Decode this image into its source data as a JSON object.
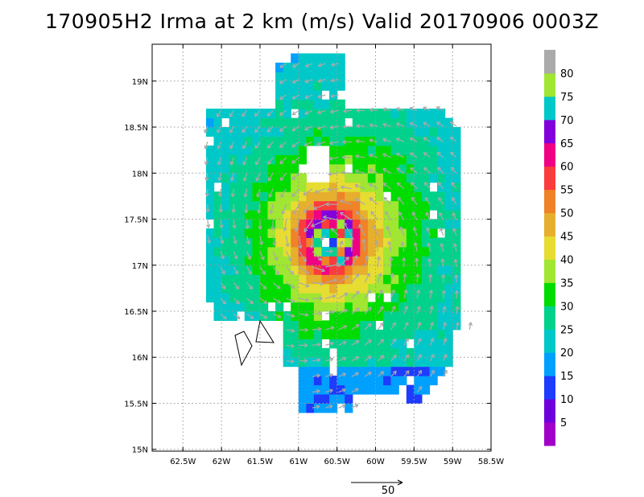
{
  "chart_data": {
    "type": "heatmap",
    "title": "170905H2 Irma at 2 km (m/s) Valid 20170906 0003Z",
    "x_ticks": [
      "62.5W",
      "62W",
      "61.5W",
      "61W",
      "60.5W",
      "60W",
      "59.5W",
      "59W",
      "58.5W"
    ],
    "x_tick_values": [
      -62.5,
      -62,
      -61.5,
      -61,
      -60.5,
      -60,
      -59.5,
      -59,
      -58.5
    ],
    "y_ticks": [
      "19N",
      "18.5N",
      "18N",
      "17.5N",
      "17N",
      "16.5N",
      "16N",
      "15.5N",
      "15N"
    ],
    "y_tick_values": [
      19,
      18.5,
      18,
      17.5,
      17,
      16.5,
      16,
      15.5,
      15
    ],
    "xlim": [
      -62.9,
      -58.5
    ],
    "ylim": [
      14.98,
      19.4
    ],
    "grid": true,
    "colorbar": {
      "labels": [
        "5",
        "10",
        "15",
        "20",
        "25",
        "30",
        "35",
        "40",
        "45",
        "50",
        "55",
        "60",
        "65",
        "70",
        "75",
        "80"
      ],
      "levels": [
        5,
        10,
        15,
        20,
        25,
        30,
        35,
        40,
        45,
        50,
        55,
        60,
        65,
        70,
        75,
        80
      ],
      "colors": [
        "#a000c8",
        "#6e00dc",
        "#1e3cff",
        "#00a0ff",
        "#00c8c8",
        "#00d28c",
        "#00dc00",
        "#a0e632",
        "#e6dc32",
        "#e6af2d",
        "#f08228",
        "#fa3c3c",
        "#f00082",
        "#8200dc",
        "#00c8c8",
        "#a0e632",
        "#aaaaaa"
      ]
    },
    "storm_center": {
      "lon": -60.62,
      "lat": 17.25
    },
    "rmw_deg": 0.25,
    "peak_speed": 72,
    "vector_reference": {
      "label": "50",
      "value": 50
    }
  }
}
